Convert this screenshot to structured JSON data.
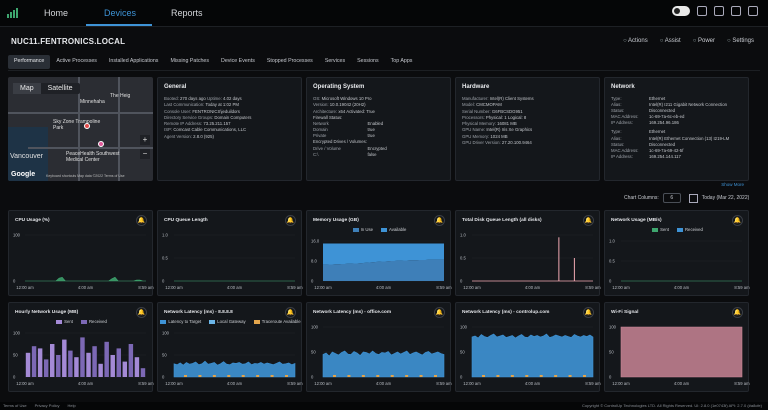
{
  "nav": {
    "links": [
      "Home",
      "Devices",
      "Reports"
    ],
    "active": "Devices"
  },
  "device": {
    "name": "NUC11.FENTRONICS.LOCAL",
    "actions": [
      "Actions",
      "Assist",
      "Power",
      "Settings"
    ]
  },
  "tabs": [
    "Performance",
    "Active Processes",
    "Installed Applications",
    "Missing Patches",
    "Device Events",
    "Stopped Processes",
    "Services",
    "Sessions",
    "Top Apps"
  ],
  "map": {
    "modes": [
      "Map",
      "Satellite"
    ],
    "labels": [
      "Minnehaha",
      "The Heig",
      "Sky Zone Trampoline Park",
      "Vancouver",
      "PeaceHealth Southwest Medical Center",
      "Google"
    ],
    "attribution": "Keyboard shortcuts  Map data ©2022  Terms of Use"
  },
  "general": {
    "title": "General",
    "rows": [
      [
        "Booted:",
        "270 days ago",
        "Uptime:",
        "4.02 days"
      ],
      [
        "Last Communication:",
        "Today at 1:02 PM",
        "",
        ""
      ],
      [
        "Console User:",
        "FENTRONICS\\jeduildors",
        "",
        ""
      ],
      [
        "Directory Service Groups:",
        "Domain Computers",
        "",
        ""
      ],
      [
        "Remote IP Address:",
        "73.25.211.157",
        "",
        ""
      ],
      [
        "ISP:",
        "Comcast Cable Communications, LLC",
        "",
        ""
      ],
      [
        "Agent Version:",
        "2.8.0 (925)",
        "",
        ""
      ]
    ]
  },
  "os": {
    "title": "Operating System",
    "rows": [
      [
        "OS:",
        "Microsoft Windows 10 Pro"
      ],
      [
        "Version:",
        "10.0.19042 (20H2)"
      ],
      [
        "Architecture:",
        "x64   Activated: True"
      ]
    ],
    "firewall_title": "Firewall Status:",
    "firewall": [
      [
        "Network",
        "Enabled"
      ],
      [
        "Domain",
        "true"
      ],
      [
        "Private",
        "true"
      ]
    ],
    "encrypted_title": "Encrypted Drives / Volumes:",
    "encrypted": [
      [
        "Drive / Volume",
        "Encrypted"
      ],
      [
        "C:\\",
        "false"
      ]
    ]
  },
  "hardware": {
    "title": "Hardware",
    "rows": [
      [
        "Manufacturer:",
        "Intel(R) Client Systems"
      ],
      [
        "Model:",
        "CMCMOPAM"
      ],
      [
        "Serial Number:",
        "G6FBCSDG951"
      ],
      [
        "Processors:",
        "Physical: 1   Logical: 8"
      ],
      [
        "Physical Memory:",
        "16081 MB"
      ],
      [
        "GPU Name:",
        "Intel(R) Iris Xe Graphics"
      ],
      [
        "GPU Memory:",
        "1024 MB"
      ],
      [
        "GPU Driver Version:",
        "27.20.100.9464"
      ]
    ]
  },
  "network": {
    "title": "Network",
    "adapters": [
      [
        [
          "Type:",
          "Ethernet"
        ],
        [
          "Alias:",
          "Intel(R) I211 Gigabit Network Connection"
        ],
        [
          "Status:",
          "Disconnected"
        ],
        [
          "MAC Address:",
          "1c-69-7a-6c-eb-ed"
        ],
        [
          "IP Address:",
          "169.254.96.186"
        ]
      ],
      [
        [
          "Type:",
          "Ethernet"
        ],
        [
          "Alias:",
          "Intel(R) Ethernet Connection (13) I219-LM"
        ],
        [
          "Status:",
          "Disconnected"
        ],
        [
          "MAC Address:",
          "1c-69-7a-69-42-5f"
        ],
        [
          "IP Address:",
          "169.254.144.117"
        ]
      ]
    ],
    "show_more": "Show More"
  },
  "controls": {
    "chart_columns_label": "Chart Columns:",
    "chart_columns_value": "6",
    "date_label": "Today (Mar 22, 2022)"
  },
  "colors": {
    "blue": "#3e93d6",
    "green": "#3ea66f",
    "pink": "#f2a9b3",
    "purple": "#a48ad6",
    "orange": "#e3a54c",
    "rose": "#c98595"
  },
  "footer": {
    "links": [
      "Terms of Use",
      "Privacy Policy",
      "Help"
    ],
    "copyright": "Copyright © ControlUp Technologies LTD. All Rights Reserved.   UI: 2.8.0 (1e0743f)   API: 2.7.0 (#a8cfe)"
  },
  "panels": [
    {
      "title": "CPU Usage (%)",
      "y_ticks": [
        "100",
        "0"
      ],
      "x_ticks": [
        "12:00 am",
        "4:00 am",
        "8:59 am"
      ],
      "type": "area",
      "colors": [
        "#3ea66f"
      ],
      "series": [
        [
          0,
          0,
          0,
          0,
          0,
          0,
          0,
          0,
          0,
          0,
          0,
          6,
          8,
          0,
          0,
          0,
          0,
          0,
          0,
          0,
          0,
          0,
          0,
          0,
          0,
          0,
          0,
          0,
          5,
          8,
          0,
          0,
          0,
          0,
          0,
          0,
          2,
          2,
          0,
          0
        ]
      ],
      "ymax": 100,
      "legend": []
    },
    {
      "title": "CPU Queue Length",
      "y_ticks": [
        "1.0",
        "0.5",
        "0"
      ],
      "x_ticks": [
        "12:00 am",
        "4:00 am",
        "8:59 am"
      ],
      "type": "area",
      "colors": [
        "#3ea66f"
      ],
      "series": [
        [
          0,
          0,
          0,
          0,
          0,
          0,
          0,
          0,
          0,
          0,
          0,
          0,
          0,
          0,
          0,
          0,
          0,
          0,
          0,
          0,
          0,
          0,
          0,
          0,
          0,
          0,
          0,
          0,
          0,
          0,
          0,
          0,
          0,
          0,
          0,
          0,
          0,
          0,
          0,
          0
        ]
      ],
      "ymax": 1,
      "legend": []
    },
    {
      "title": "Memory Usage (GB)",
      "y_ticks": [
        "16.0",
        "8.0",
        "0"
      ],
      "x_ticks": [
        "12:00 am",
        "4:00 am",
        "8:59 am"
      ],
      "type": "stacked",
      "colors": [
        "#3e7fb8",
        "#3e93d6"
      ],
      "series": [
        [
          6.5,
          6.5,
          6.6,
          6.6,
          6.7,
          6.7,
          6.8,
          6.8,
          6.9,
          6.9,
          7,
          7,
          7.1,
          7.2,
          7.3,
          7.4,
          7.5,
          7.6,
          7.7,
          7.8,
          7.8,
          7.9,
          8,
          8,
          8.1,
          8.1,
          8.2,
          8.2,
          8.3,
          8.3,
          8.3,
          8.4,
          8.4,
          8.4,
          8.5,
          8.5,
          8.5,
          8.5,
          8.5,
          8.5
        ],
        [
          8.5,
          8.5,
          8.4,
          8.4,
          8.3,
          8.3,
          8.2,
          8.2,
          8.1,
          8.1,
          8,
          8,
          7.9,
          7.8,
          7.7,
          7.6,
          7.5,
          7.4,
          7.3,
          7.2,
          7.2,
          7.1,
          7,
          7,
          6.9,
          6.9,
          6.8,
          6.8,
          6.7,
          6.7,
          6.7,
          6.6,
          6.6,
          6.6,
          6.5,
          6.5,
          6.5,
          6.5,
          6.5,
          6.5
        ]
      ],
      "ymax": 16,
      "legend": [
        [
          "In Use",
          "#3e7fb8"
        ],
        [
          "Available",
          "#3e93d6"
        ]
      ]
    },
    {
      "title": "Total Disk Queue Length (all disks)",
      "y_ticks": [
        "1.0",
        "0.5",
        "0"
      ],
      "x_ticks": [
        "12:00 am",
        "4:00 am",
        "8:59 am"
      ],
      "type": "spike",
      "colors": [
        "#f2a9b3"
      ],
      "series": [
        [
          0,
          0,
          0,
          0,
          0,
          0,
          0,
          0,
          0,
          0,
          0,
          0,
          0,
          0,
          0,
          0,
          0,
          0,
          0,
          0,
          0,
          0,
          0,
          0,
          0,
          0,
          0,
          0,
          0.95,
          0,
          0,
          0,
          0,
          0.5,
          0,
          0,
          0,
          0,
          0,
          0
        ]
      ],
      "ymax": 1,
      "legend": []
    },
    {
      "title": "Network Usage (MB/s)",
      "y_ticks": [
        "1.0",
        "0.5",
        "0"
      ],
      "x_ticks": [
        "12:00 am",
        "4:00 am",
        "8:59 am"
      ],
      "type": "area",
      "colors": [
        "#3ea66f",
        "#3e93d6"
      ],
      "series": [
        [
          0,
          0,
          0,
          0,
          0,
          0,
          0,
          0,
          0,
          0,
          0,
          0,
          0,
          0,
          0,
          0,
          0,
          0,
          0,
          0,
          0,
          0,
          0,
          0,
          0,
          0,
          0,
          0,
          0,
          0,
          0,
          0,
          0,
          0,
          0,
          0,
          0,
          0,
          0,
          0
        ]
      ],
      "ymax": 1,
      "legend": [
        [
          "Sent",
          "#3ea66f"
        ],
        [
          "Received",
          "#3e93d6"
        ]
      ]
    },
    {
      "title": "Hourly Network Usage (MB)",
      "y_ticks": [
        "100",
        "50",
        "0"
      ],
      "x_ticks": [
        "12:00 am",
        "4:00 am",
        "8:59 am"
      ],
      "type": "bars",
      "colors": [
        "#a48ad6",
        "#7c68b5"
      ],
      "series": [
        [
          55,
          70,
          65,
          40,
          75,
          50,
          85,
          60,
          45,
          90,
          55,
          70,
          30,
          80,
          50,
          65,
          35,
          75,
          45,
          20
        ]
      ],
      "ymax": 100,
      "legend": [
        [
          "Sent",
          "#a48ad6"
        ],
        [
          "Received",
          "#7c68b5"
        ]
      ]
    },
    {
      "title": "Network Latency (ms) - 8.8.8.8",
      "y_ticks": [
        "100",
        "50",
        "0"
      ],
      "x_ticks": [
        "12:00 am",
        "4:00 am",
        "8:59 am"
      ],
      "type": "noise",
      "colors": [
        "#3e93d6"
      ],
      "series": [
        [
          30,
          28,
          32,
          27,
          33,
          29,
          31,
          34,
          28,
          30,
          36,
          29,
          31,
          33,
          27,
          30,
          35,
          29,
          28,
          32,
          31,
          33,
          29,
          30,
          34,
          28,
          31,
          30,
          33,
          29,
          32,
          30,
          28,
          31,
          34,
          29,
          30,
          32,
          28,
          31
        ]
      ],
      "ymax": 100,
      "legend": [
        [
          "Latency to Target",
          "#3e93d6"
        ],
        [
          "Local Gateway",
          "#6cb6e8"
        ],
        [
          "Traceroute Available",
          "#e3a54c"
        ]
      ]
    },
    {
      "title": "Network Latency (ms) - office.com",
      "y_ticks": [
        "100",
        "50",
        "0"
      ],
      "x_ticks": [
        "12:00 am",
        "4:00 am",
        "8:59 am"
      ],
      "type": "noise",
      "colors": [
        "#3e93d6"
      ],
      "series": [
        [
          45,
          48,
          42,
          50,
          47,
          44,
          49,
          52,
          46,
          45,
          51,
          48,
          43,
          50,
          49,
          46,
          52,
          47,
          45,
          49,
          48,
          51,
          44,
          47,
          50,
          46,
          49,
          52,
          45,
          48,
          50,
          47,
          44,
          49,
          51,
          46,
          48,
          50,
          47,
          45
        ]
      ],
      "ymax": 100,
      "legend": []
    },
    {
      "title": "Network Latency (ms) - controlup.com",
      "y_ticks": [
        "100",
        "50",
        "0"
      ],
      "x_ticks": [
        "12:00 am",
        "4:00 am",
        "8:59 am"
      ],
      "type": "noise",
      "colors": [
        "#3e93d6"
      ],
      "series": [
        [
          80,
          82,
          78,
          85,
          81,
          79,
          83,
          86,
          80,
          82,
          84,
          79,
          81,
          83,
          78,
          82,
          85,
          80,
          79,
          84,
          81,
          83,
          80,
          82,
          86,
          79,
          81,
          84,
          82,
          80,
          83,
          81,
          79,
          85,
          82,
          80,
          83,
          81,
          84,
          80
        ]
      ],
      "ymax": 100,
      "legend": []
    },
    {
      "title": "Wi-Fi Signal",
      "y_ticks": [
        "100",
        "50",
        "0"
      ],
      "x_ticks": [
        "12:00 am",
        "4:00 am",
        "8:59 am"
      ],
      "type": "area",
      "colors": [
        "#c98595"
      ],
      "series": [
        [
          100,
          100,
          100,
          100,
          100,
          100,
          100,
          100,
          100,
          100,
          100,
          100,
          100,
          100,
          100,
          100,
          100,
          100,
          100,
          100,
          100,
          100,
          100,
          100,
          100,
          100,
          100,
          100,
          100,
          100,
          100,
          100,
          100,
          100,
          100,
          100,
          100,
          100,
          100,
          100
        ]
      ],
      "ymax": 100,
      "legend": []
    }
  ]
}
